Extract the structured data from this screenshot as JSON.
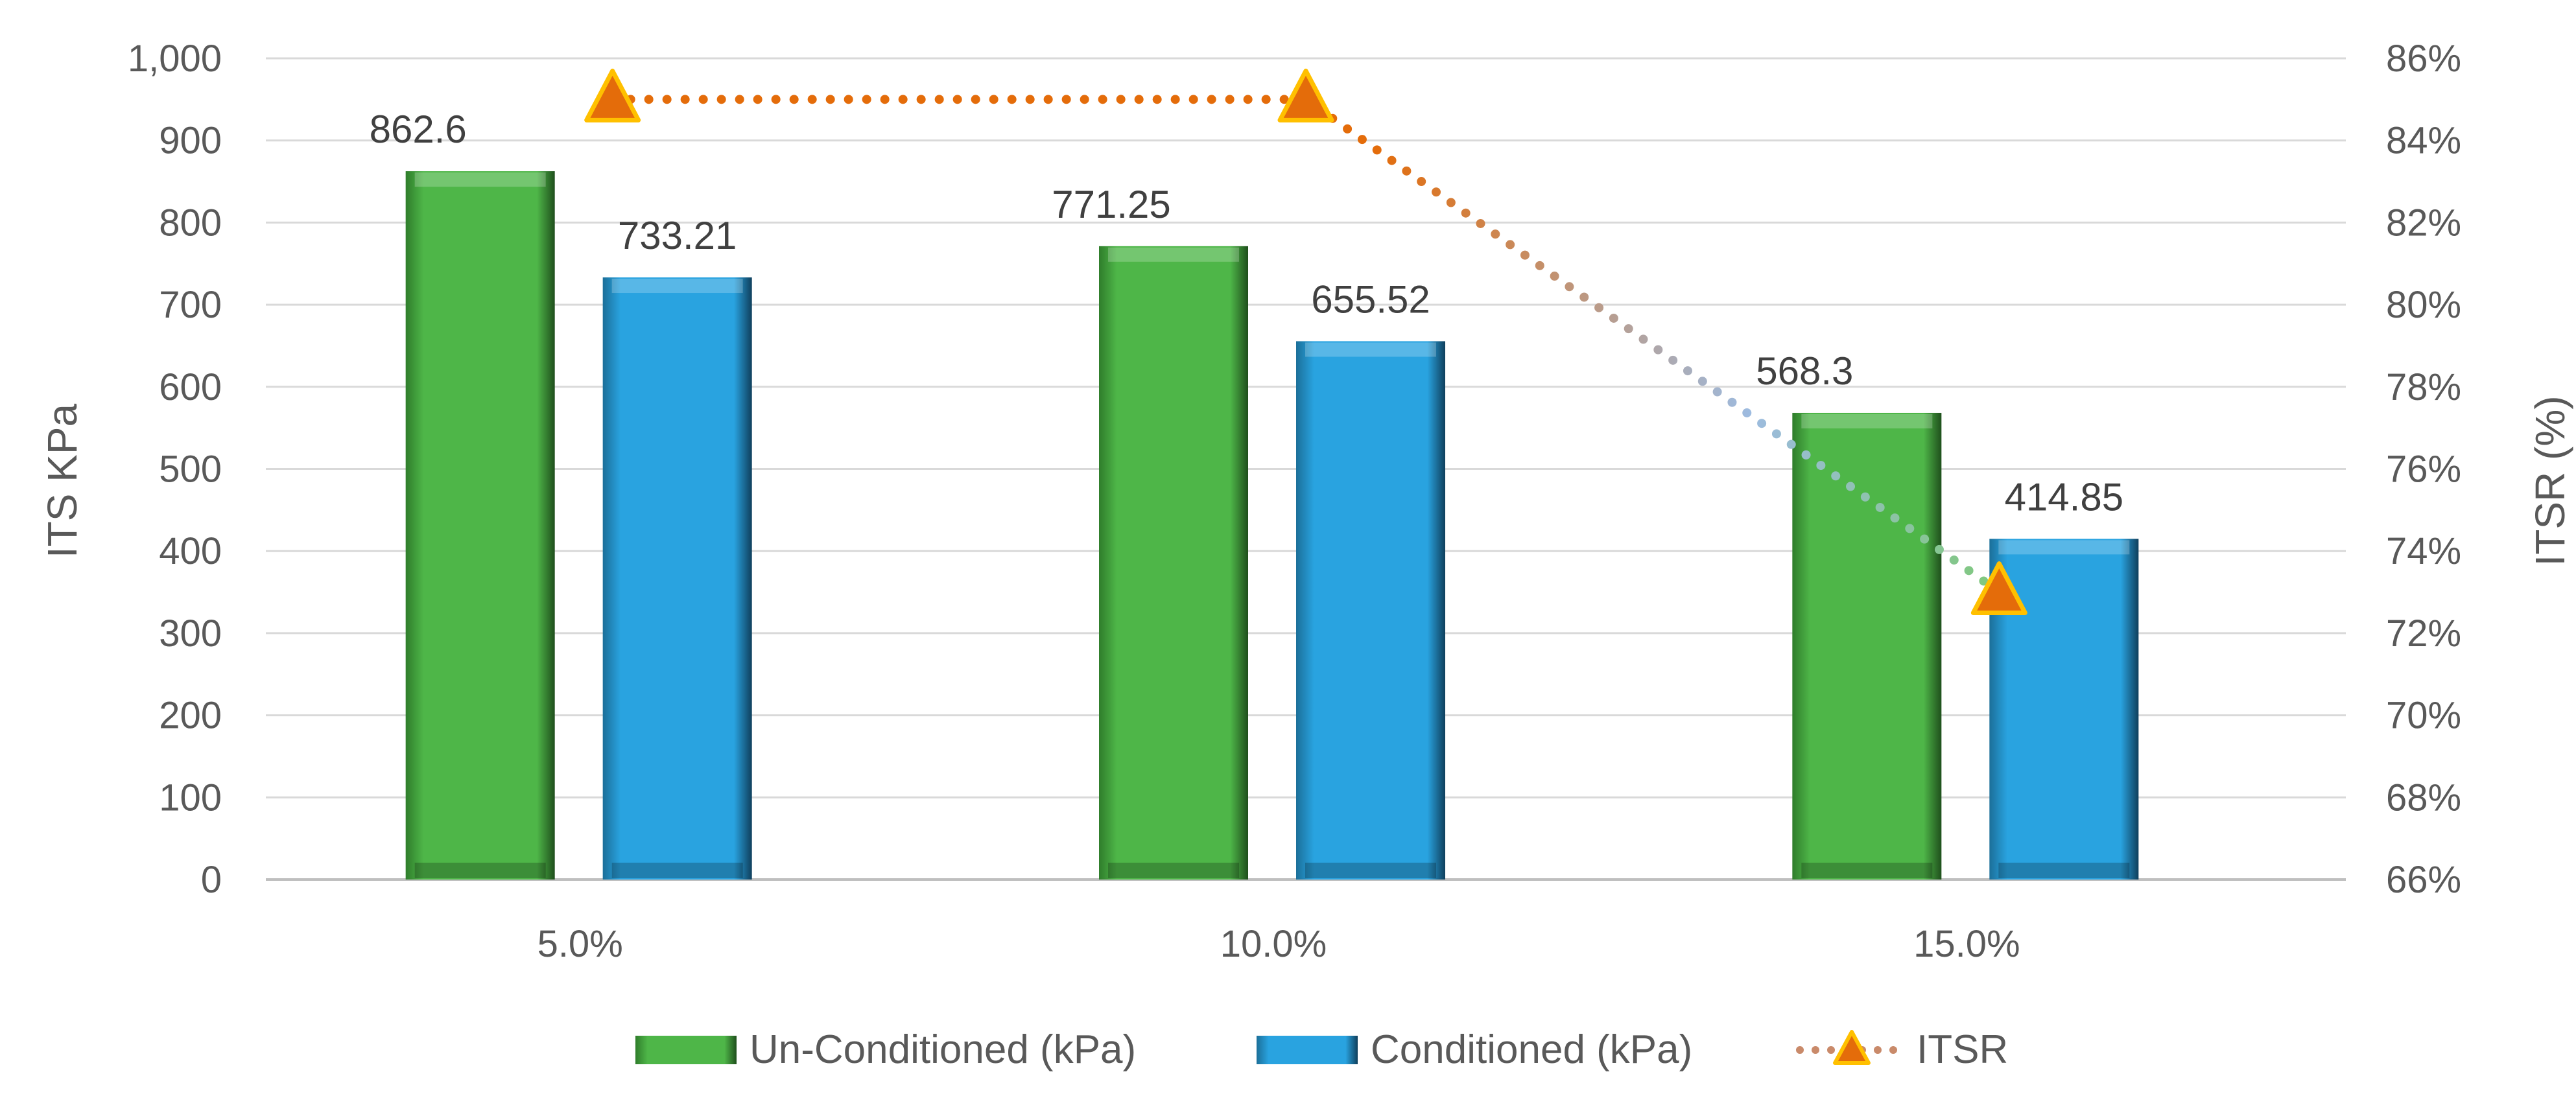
{
  "chart_data": {
    "type": "bar",
    "categories": [
      "5.0%",
      "10.0%",
      "15.0%"
    ],
    "series": [
      {
        "name": "Un-Conditioned (kPa)",
        "kind": "bar",
        "axis": "left",
        "color": "#4EB648",
        "values": [
          862.6,
          771.25,
          568.3
        ],
        "labels": [
          "862.6",
          "771.25",
          "568.3"
        ]
      },
      {
        "name": "Conditioned (kPa)",
        "kind": "bar",
        "axis": "left",
        "color": "#29A3E0",
        "values": [
          733.21,
          655.52,
          414.85
        ],
        "labels": [
          "733.21",
          "655.52",
          "414.85"
        ]
      },
      {
        "name": "ITSR",
        "kind": "line",
        "axis": "right",
        "color": "#E46C0A",
        "values": [
          85,
          85,
          73
        ]
      }
    ],
    "ylabel": "ITS KPa",
    "y2label": "ITSR (%)",
    "ylim": [
      0,
      1000
    ],
    "y2lim": [
      66,
      86
    ],
    "yticks": [
      "0",
      "100",
      "200",
      "300",
      "400",
      "500",
      "600",
      "700",
      "800",
      "900",
      "1,000"
    ],
    "y2ticks": [
      "66%",
      "68%",
      "70%",
      "72%",
      "74%",
      "76%",
      "78%",
      "80%",
      "82%",
      "84%",
      "86%"
    ],
    "grid": true,
    "legend": "bottom"
  }
}
